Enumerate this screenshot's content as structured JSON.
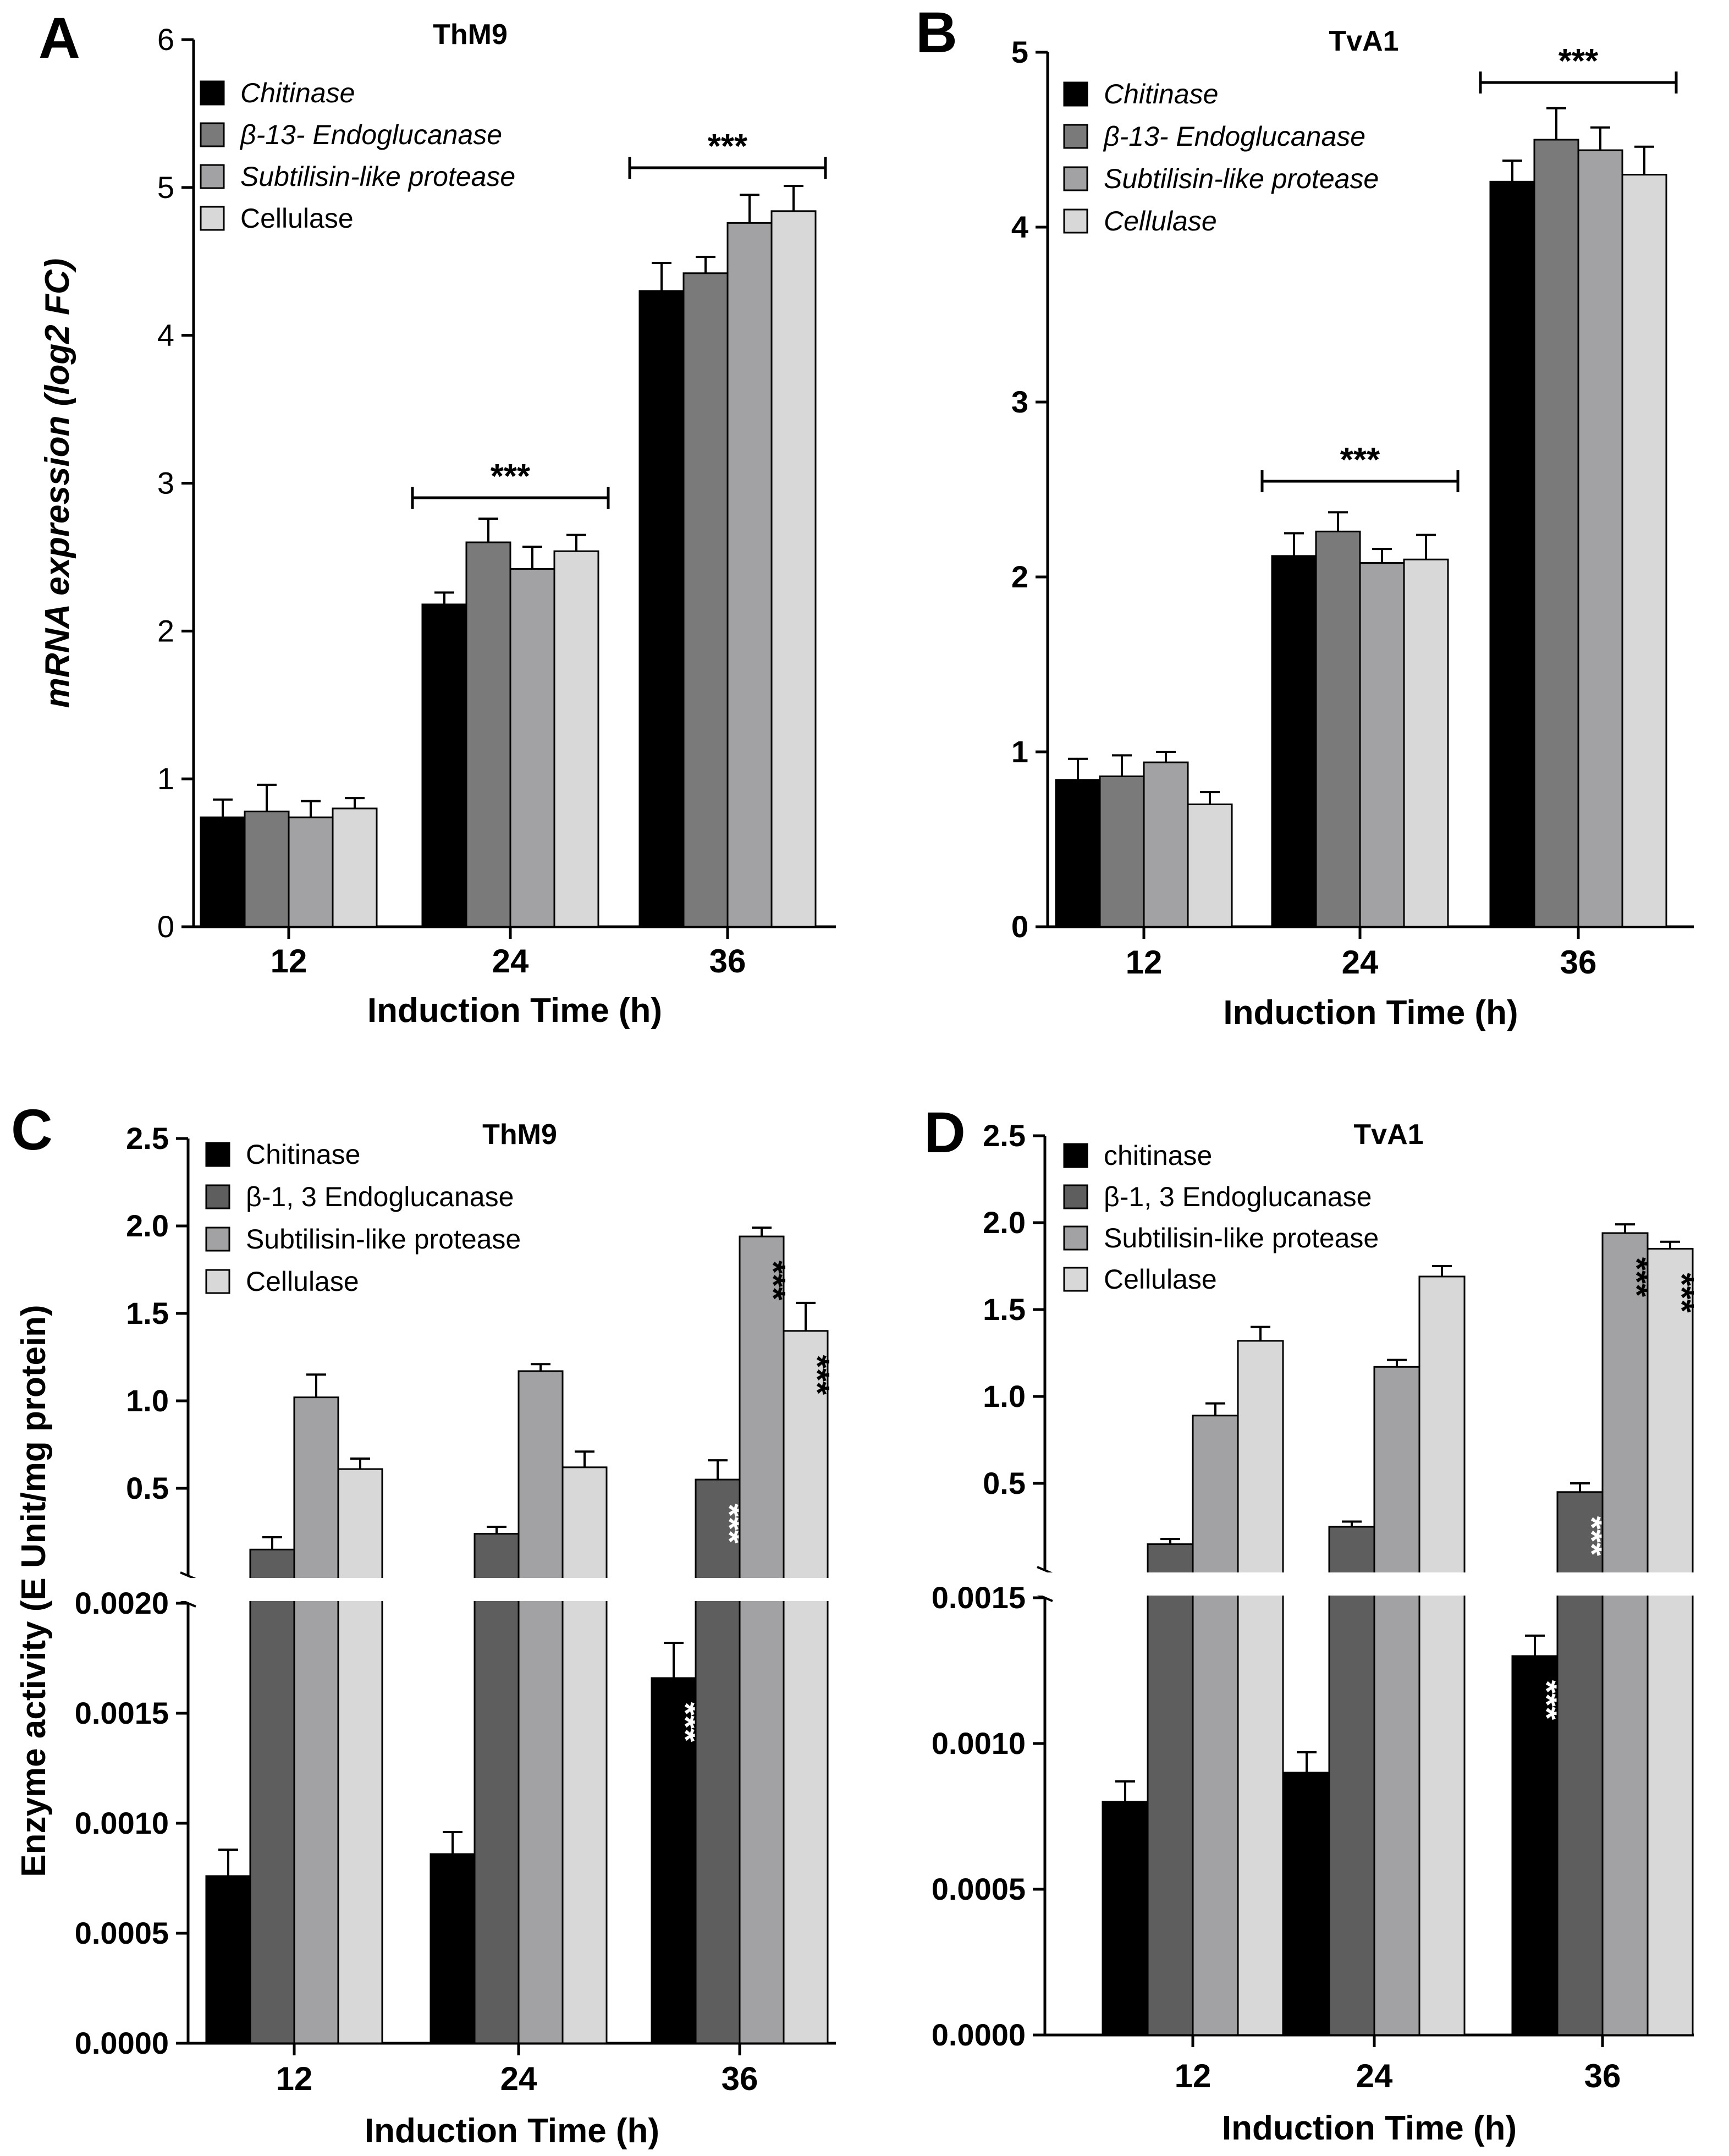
{
  "colors": {
    "chitinase": "#000000",
    "glucanase_A": "#7a7a7a",
    "glucanase_C": "#5e5e5e",
    "protease": "#a2a2a5",
    "cellulase": "#d8d8d8",
    "bar_stroke": "#000000",
    "axis": "#000000",
    "star_inside": "#ffffff"
  },
  "chart_data": [
    {
      "id": "A",
      "panel_label": "A",
      "type": "bar",
      "title": "ThM9",
      "xlabel": "Induction Time (h)",
      "ylabel": "mRNA expression (log2 FC)",
      "categories": [
        "12",
        "24",
        "36"
      ],
      "ylim": [
        0,
        6
      ],
      "yticks": [
        "0",
        "1",
        "2",
        "3",
        "4",
        "5",
        "6"
      ],
      "grid": false,
      "legend_position": "top-left",
      "series": [
        {
          "name": "Chitinase",
          "values": [
            0.74,
            2.18,
            4.3
          ],
          "errors": [
            0.12,
            0.08,
            0.19
          ],
          "color_key": "chitinase",
          "italic": true
        },
        {
          "name": "β-13- Endoglucanase",
          "values": [
            0.78,
            2.6,
            4.42
          ],
          "errors": [
            0.18,
            0.16,
            0.11
          ],
          "color_key": "glucanase_A",
          "italic": true
        },
        {
          "name": "Subtilisin-like protease",
          "values": [
            0.74,
            2.42,
            4.76
          ],
          "errors": [
            0.11,
            0.15,
            0.19
          ],
          "color_key": "protease",
          "italic": true
        },
        {
          "name": "Cellulase",
          "values": [
            0.8,
            2.54,
            4.84
          ],
          "errors": [
            0.07,
            0.11,
            0.17
          ],
          "color_key": "cellulase",
          "italic": false
        }
      ],
      "significance": [
        {
          "label": "***",
          "category": "24",
          "style": "bracket"
        },
        {
          "label": "***",
          "category": "36",
          "style": "bracket"
        }
      ]
    },
    {
      "id": "B",
      "panel_label": "B",
      "type": "bar",
      "title": "TvA1",
      "xlabel": "Induction Time (h)",
      "ylabel": "",
      "categories": [
        "12",
        "24",
        "36"
      ],
      "ylim": [
        0,
        5
      ],
      "yticks": [
        "0",
        "1",
        "2",
        "3",
        "4",
        "5"
      ],
      "grid": false,
      "legend_position": "top-left",
      "series": [
        {
          "name": "Chitinase",
          "values": [
            0.84,
            2.12,
            4.26
          ],
          "errors": [
            0.12,
            0.13,
            0.12
          ],
          "color_key": "chitinase",
          "italic": true
        },
        {
          "name": "β-13- Endoglucanase",
          "values": [
            0.86,
            2.26,
            4.5
          ],
          "errors": [
            0.12,
            0.11,
            0.18
          ],
          "color_key": "glucanase_A",
          "italic": true
        },
        {
          "name": "Subtilisin-like protease",
          "values": [
            0.94,
            2.08,
            4.44
          ],
          "errors": [
            0.06,
            0.08,
            0.13
          ],
          "color_key": "protease",
          "italic": true
        },
        {
          "name": "Cellulase",
          "values": [
            0.7,
            2.1,
            4.3
          ],
          "errors": [
            0.07,
            0.14,
            0.16
          ],
          "color_key": "cellulase",
          "italic": true
        }
      ],
      "significance": [
        {
          "label": "***",
          "category": "24",
          "style": "bracket"
        },
        {
          "label": "***",
          "category": "36",
          "style": "bracket"
        }
      ]
    },
    {
      "id": "C",
      "panel_label": "C",
      "type": "bar",
      "title": "ThM9",
      "xlabel": "Induction Time (h)",
      "ylabel": "Enzyme activity (E Unit/mg protein)",
      "categories": [
        "12",
        "24",
        "36"
      ],
      "axis_break": true,
      "lower_ylim": [
        0,
        0.002
      ],
      "lower_yticks": [
        "0.0000",
        "0.0005",
        "0.0010",
        "0.0015",
        "0.0020"
      ],
      "upper_ylim": [
        0,
        2.5
      ],
      "upper_yticks": [
        "0.5",
        "1.0",
        "1.5",
        "2.0",
        "2.5"
      ],
      "grid": false,
      "legend_position": "top-left",
      "series": [
        {
          "name": "Chitinase",
          "values": [
            0.00076,
            0.00086,
            0.00166
          ],
          "errors": [
            0.00012,
            0.0001,
            0.00016
          ],
          "axis": "lower",
          "color_key": "chitinase",
          "italic": false
        },
        {
          "name": "β-1, 3 Endoglucanase",
          "values": [
            0.15,
            0.24,
            0.55
          ],
          "errors": [
            0.07,
            0.04,
            0.11
          ],
          "axis": "upper",
          "color_key": "glucanase_C",
          "italic": false
        },
        {
          "name": "Subtilisin-like protease",
          "values": [
            1.02,
            1.17,
            1.94
          ],
          "errors": [
            0.13,
            0.04,
            0.05
          ],
          "axis": "upper",
          "color_key": "protease",
          "italic": false
        },
        {
          "name": "Cellulase",
          "values": [
            0.61,
            0.62,
            1.4
          ],
          "errors": [
            0.06,
            0.09,
            0.16
          ],
          "axis": "upper",
          "color_key": "cellulase",
          "italic": false
        }
      ],
      "significance": [
        {
          "label": "***",
          "category": "36",
          "series": 0,
          "style": "inside"
        },
        {
          "label": "***",
          "category": "36",
          "series": 1,
          "style": "inside"
        },
        {
          "label": "***",
          "category": "36",
          "series": 2,
          "style": "inside"
        },
        {
          "label": "***",
          "category": "36",
          "series": 3,
          "style": "inside"
        }
      ]
    },
    {
      "id": "D",
      "panel_label": "D",
      "type": "bar",
      "title": "TvA1",
      "xlabel": "Induction Time (h)",
      "ylabel": "",
      "categories": [
        "12",
        "24",
        "36"
      ],
      "axis_break": true,
      "lower_ylim": [
        0,
        0.0015
      ],
      "lower_yticks": [
        "0.0000",
        "0.0005",
        "0.0010",
        "0.0015"
      ],
      "upper_ylim": [
        0,
        2.5
      ],
      "upper_yticks": [
        "0.5",
        "1.0",
        "1.5",
        "2.0",
        "2.5"
      ],
      "grid": false,
      "legend_position": "top-left",
      "series": [
        {
          "name": "chitinase",
          "values": [
            0.0008,
            0.0009,
            0.0013
          ],
          "errors": [
            7e-05,
            7e-05,
            7e-05
          ],
          "axis": "lower",
          "color_key": "chitinase",
          "italic": false
        },
        {
          "name": "β-1, 3 Endoglucanase",
          "values": [
            0.15,
            0.25,
            0.45
          ],
          "errors": [
            0.03,
            0.03,
            0.05
          ],
          "axis": "upper",
          "color_key": "glucanase_C",
          "italic": false
        },
        {
          "name": "Subtilisin-like protease",
          "values": [
            0.89,
            1.17,
            1.94
          ],
          "errors": [
            0.07,
            0.04,
            0.05
          ],
          "axis": "upper",
          "color_key": "protease",
          "italic": false
        },
        {
          "name": "Cellulase",
          "values": [
            1.32,
            1.69,
            1.85
          ],
          "errors": [
            0.08,
            0.06,
            0.04
          ],
          "axis": "upper",
          "color_key": "cellulase",
          "italic": false
        }
      ],
      "significance": [
        {
          "label": "***",
          "category": "36",
          "series": 0,
          "style": "inside"
        },
        {
          "label": "***",
          "category": "36",
          "series": 1,
          "style": "inside"
        },
        {
          "label": "***",
          "category": "36",
          "series": 2,
          "style": "inside"
        },
        {
          "label": "***",
          "category": "36",
          "series": 3,
          "style": "inside"
        }
      ]
    }
  ]
}
